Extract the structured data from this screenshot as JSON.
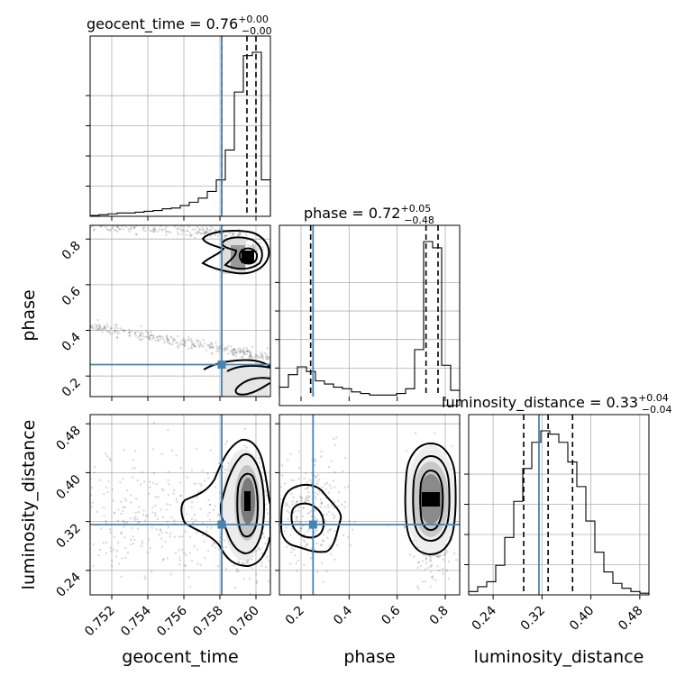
{
  "chart_data": {
    "type": "scatter",
    "parameters": [
      "geocent_time",
      "phase",
      "luminosity_distance"
    ],
    "axis_labels": [
      "geocent_time",
      "phase",
      "luminosity_distance"
    ],
    "ranges": {
      "geocent_time": [
        0.7508,
        0.7608
      ],
      "phase": [
        0.11,
        0.86
      ],
      "luminosity_distance": [
        0.2,
        0.495
      ]
    },
    "ticks": {
      "geocent_time": [
        0.752,
        0.754,
        0.756,
        0.758,
        0.76
      ],
      "phase": [
        0.2,
        0.4,
        0.6,
        0.8
      ],
      "luminosity_distance": [
        0.24,
        0.32,
        0.4,
        0.48
      ]
    },
    "tick_labels": {
      "geocent_time": [
        "0.752",
        "0.754",
        "0.756",
        "0.758",
        "0.760"
      ],
      "phase": [
        "0.2",
        "0.4",
        "0.6",
        "0.8"
      ],
      "luminosity_distance": [
        "0.24",
        "0.32",
        "0.40",
        "0.48"
      ]
    },
    "truths": {
      "geocent_time": 0.7581,
      "phase": 0.25,
      "luminosity_distance": 0.315
    },
    "quantiles": {
      "geocent_time": [
        0.7581,
        0.7595,
        0.76
      ],
      "phase": [
        0.24,
        0.72,
        0.77
      ],
      "luminosity_distance": [
        0.29,
        0.33,
        0.37
      ]
    },
    "titles": [
      {
        "param": "geocent_time",
        "text": "geocent_time = 0.76",
        "sup": "+0.00",
        "sub": "−0.00"
      },
      {
        "param": "phase",
        "text": "phase = 0.72",
        "sup": "+0.05",
        "sub": "−0.48"
      },
      {
        "param": "luminosity_distance",
        "text": "luminosity_distance = 0.33",
        "sup": "+0.04",
        "sub": "−0.04"
      }
    ],
    "histograms": {
      "geocent_time": {
        "edges": [
          0.7508,
          0.7513,
          0.7518,
          0.7523,
          0.7528,
          0.7533,
          0.7538,
          0.7543,
          0.7548,
          0.7553,
          0.7558,
          0.7563,
          0.7568,
          0.7573,
          0.7578,
          0.7583,
          0.7588,
          0.7593,
          0.7598,
          0.7603,
          0.7608
        ],
        "counts": [
          0.5,
          1.0,
          1.5,
          2.0,
          2.0,
          2.5,
          3.0,
          3.5,
          4.5,
          5.0,
          6.5,
          8.5,
          11.0,
          15.0,
          22.0,
          40.0,
          75.0,
          97.0,
          99.0,
          22.0
        ]
      },
      "phase": {
        "edges": [
          0.11,
          0.1475,
          0.185,
          0.2225,
          0.26,
          0.2975,
          0.335,
          0.3725,
          0.41,
          0.4475,
          0.485,
          0.5225,
          0.56,
          0.5975,
          0.635,
          0.6725,
          0.71,
          0.7475,
          0.785,
          0.8225,
          0.86
        ],
        "counts": [
          6,
          14,
          19,
          16,
          10,
          8,
          6,
          5,
          3,
          2,
          1,
          1,
          1,
          2,
          5,
          30,
          99,
          95,
          20,
          4
        ]
      },
      "luminosity_distance": {
        "edges": [
          0.2,
          0.21475,
          0.2295,
          0.24425,
          0.259,
          0.27375,
          0.2885,
          0.30325,
          0.318,
          0.33275,
          0.3475,
          0.36225,
          0.377,
          0.39175,
          0.4065,
          0.42125,
          0.436,
          0.45075,
          0.4655,
          0.48025,
          0.495
        ],
        "counts": [
          2,
          5,
          8,
          18,
          35,
          57,
          77,
          93,
          100,
          98,
          93,
          81,
          66,
          45,
          26,
          14,
          7,
          4,
          2,
          1
        ]
      }
    }
  }
}
